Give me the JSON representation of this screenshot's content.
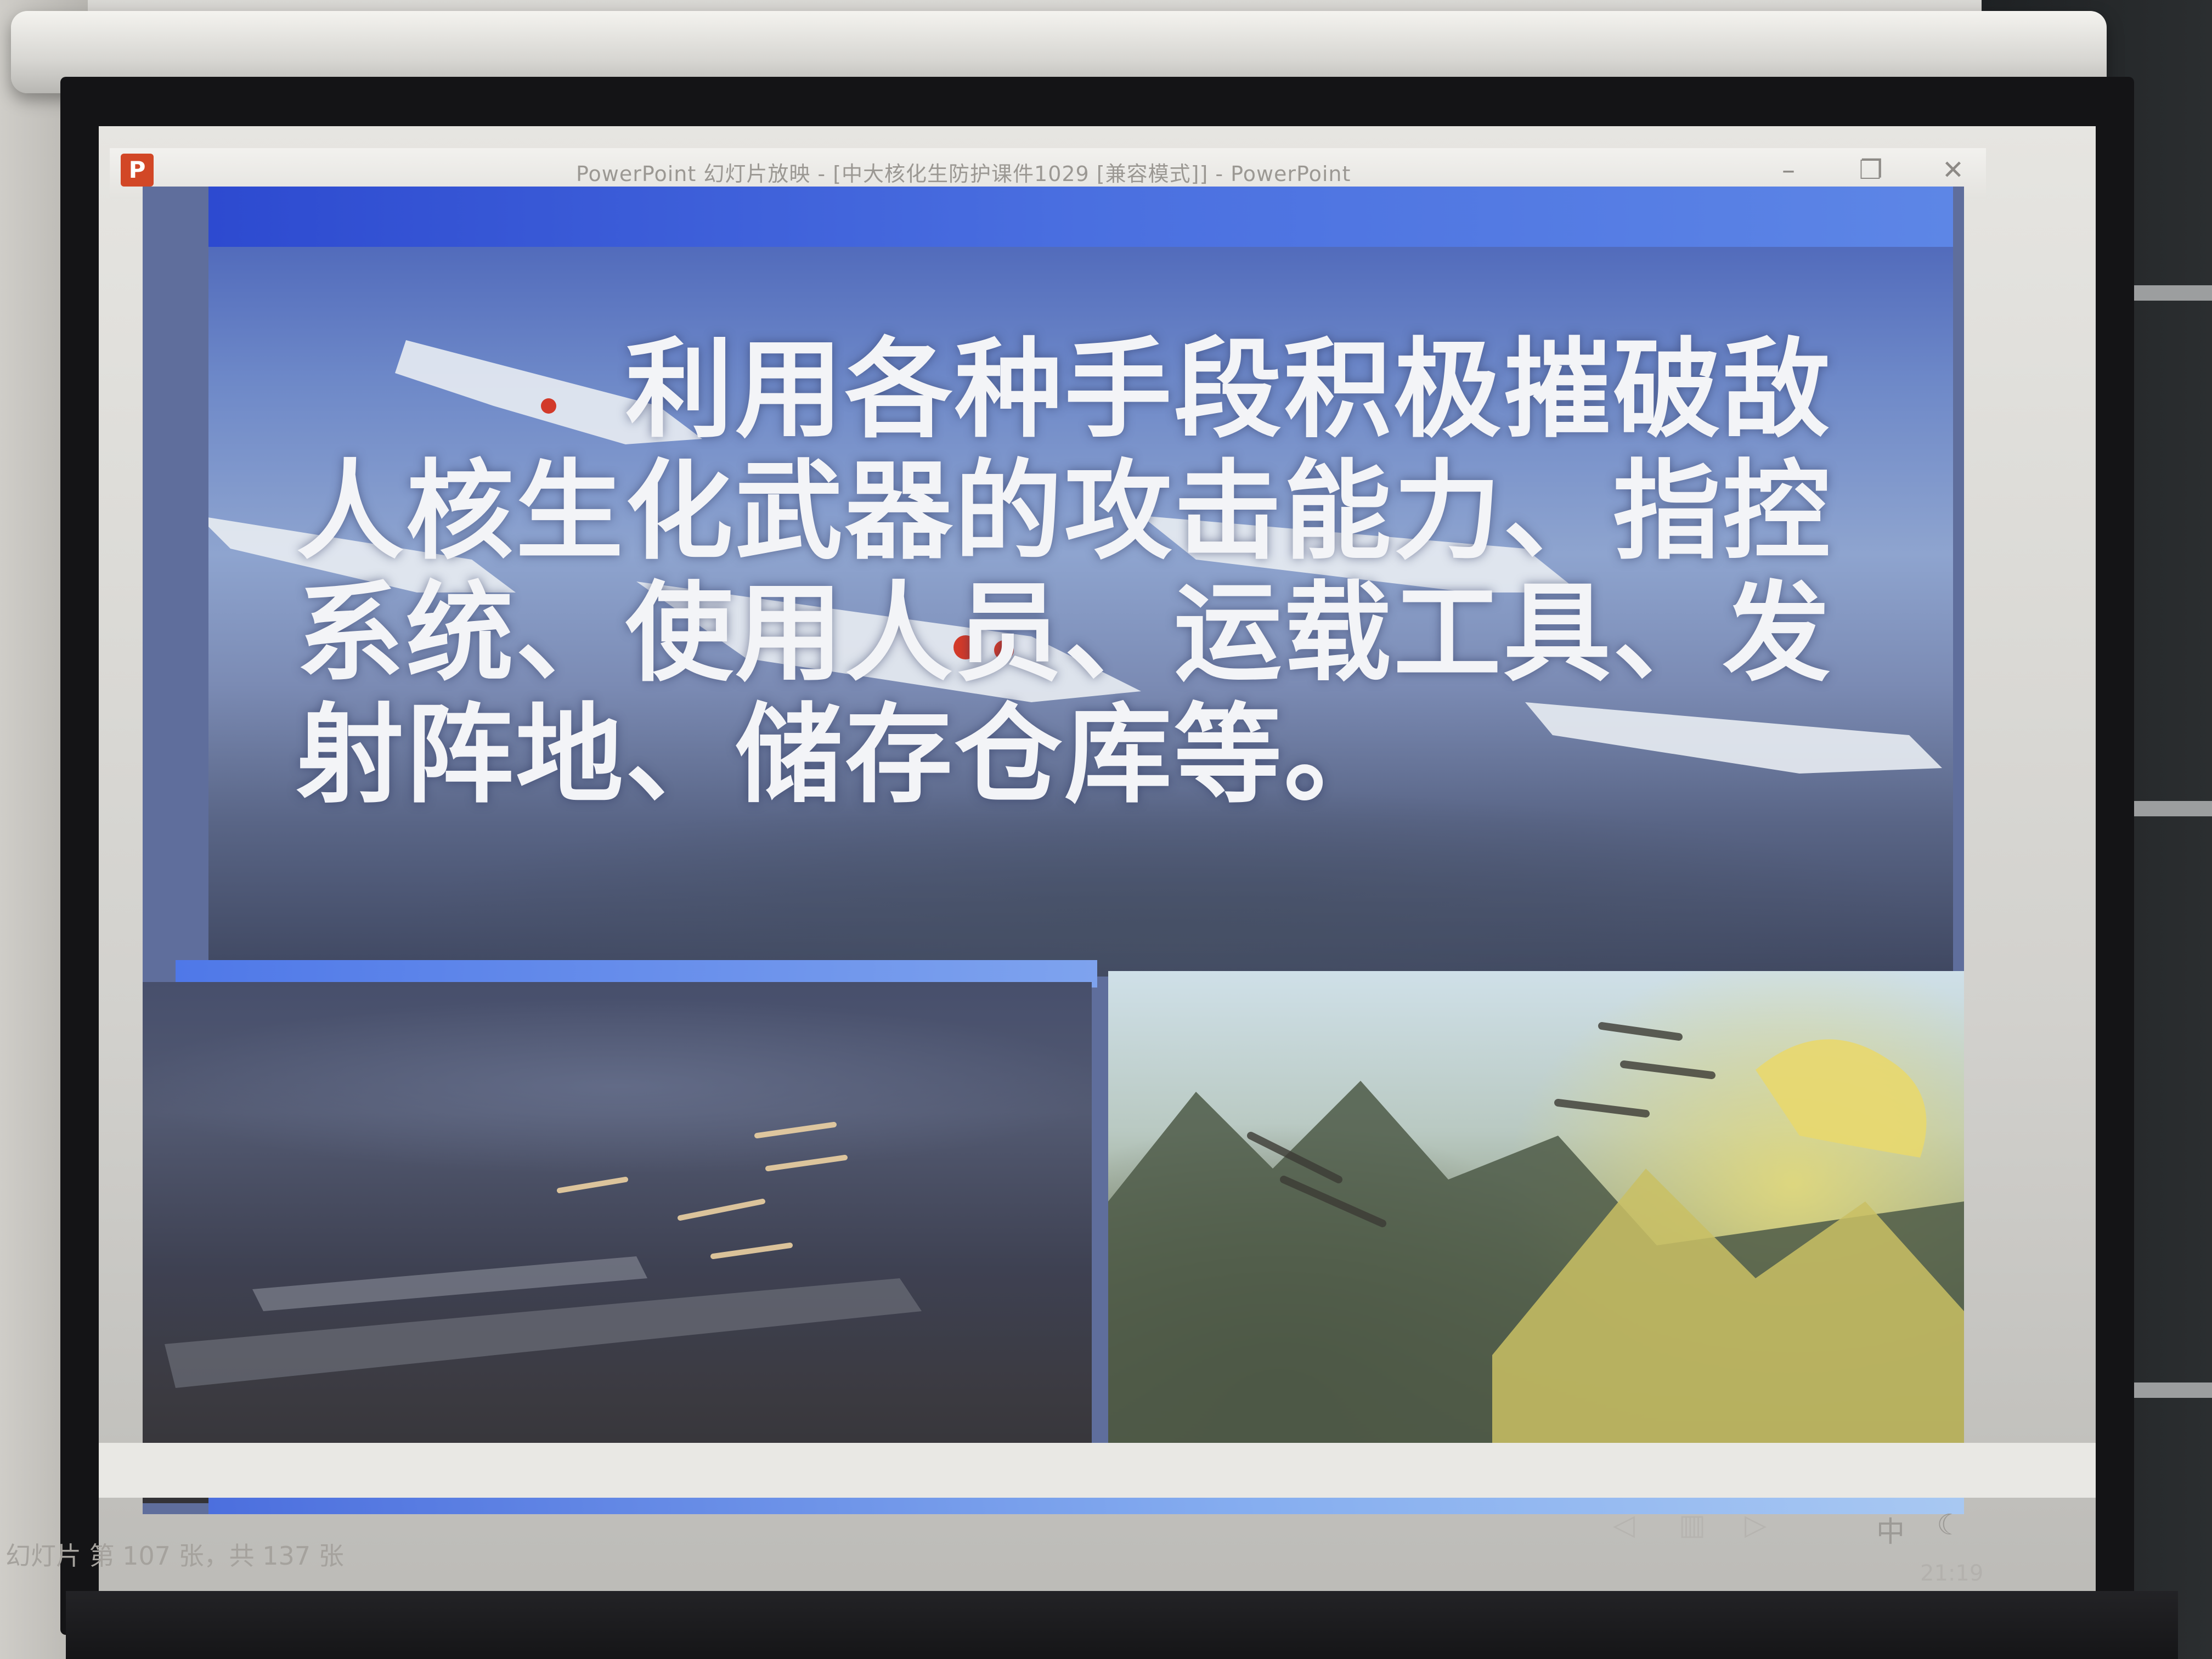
{
  "window": {
    "title": "PowerPoint 幻灯片放映 - [中大核化生防护课件1029 [兼容模式]] - PowerPoint",
    "app_icon": "P",
    "minimize": "–",
    "restore": "❐",
    "close": "✕"
  },
  "slide": {
    "lines": [
      "利用各种手段积极摧破敌",
      "人核生化武器的攻击能力、指控",
      "系统、使用人员、运载工具、发",
      "射阵地、储存仓库等。"
    ]
  },
  "status": {
    "slide_counter": "幻灯片 第 107 张，共 137 张",
    "ime": "中",
    "time": "21:19"
  },
  "icons": {
    "prev": "prev-icon",
    "notes": "notes-icon",
    "next": "next-icon",
    "moon": "moon-icon"
  }
}
